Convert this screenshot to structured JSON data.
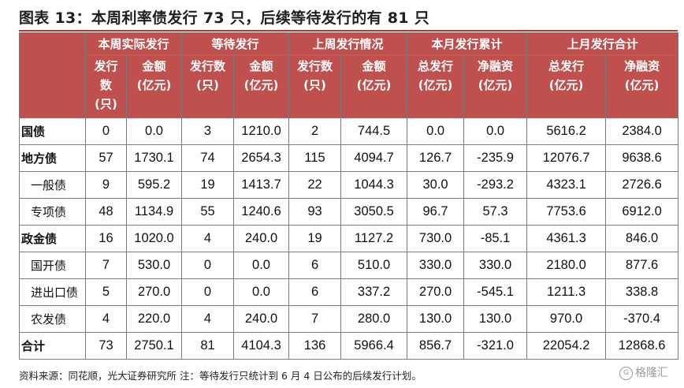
{
  "title": "图表 13：本周利率债发行 73 只，后续等待发行的有 81 只",
  "groups": [
    "本周实际发行",
    "等待发行",
    "上周发行情况",
    "本月发行累计",
    "上月发行合计"
  ],
  "subheaders": [
    [
      "发行\n数\n(只)",
      "金额\n(亿元)"
    ],
    [
      "发行数\n(只)",
      "金额\n(亿元)"
    ],
    [
      "发行数\n(只)",
      "金额\n(亿元)"
    ],
    [
      "总发行\n(亿元)",
      "净融资\n(亿元)"
    ],
    [
      "总发行\n(亿元)",
      "净融资\n(亿元)"
    ]
  ],
  "rows": [
    {
      "label": "国债",
      "sub": false,
      "values": [
        "0",
        "0.0",
        "3",
        "1210.0",
        "2",
        "744.5",
        "0.0",
        "0.0",
        "5616.2",
        "2384.0"
      ]
    },
    {
      "label": "地方债",
      "sub": false,
      "values": [
        "57",
        "1730.1",
        "74",
        "2654.3",
        "115",
        "4094.7",
        "126.7",
        "-235.9",
        "12076.7",
        "9638.6"
      ]
    },
    {
      "label": "一般债",
      "sub": true,
      "values": [
        "9",
        "595.2",
        "19",
        "1413.7",
        "22",
        "1044.3",
        "30.0",
        "-293.2",
        "4323.1",
        "2726.6"
      ]
    },
    {
      "label": "专项债",
      "sub": true,
      "values": [
        "48",
        "1134.9",
        "55",
        "1240.6",
        "93",
        "3050.5",
        "96.7",
        "57.3",
        "7753.6",
        "6912.0"
      ]
    },
    {
      "label": "政金债",
      "sub": false,
      "values": [
        "16",
        "1020.0",
        "4",
        "240.0",
        "19",
        "1127.2",
        "730.0",
        "-85.1",
        "4361.3",
        "846.0"
      ]
    },
    {
      "label": "国开债",
      "sub": true,
      "values": [
        "7",
        "530.0",
        "0",
        "0.0",
        "6",
        "510.0",
        "330.0",
        "330.0",
        "2180.0",
        "877.6"
      ]
    },
    {
      "label": "进出口债",
      "sub": true,
      "values": [
        "5",
        "270.0",
        "0",
        "0.0",
        "6",
        "337.2",
        "270.0",
        "-545.1",
        "1211.3",
        "338.8"
      ]
    },
    {
      "label": "农发债",
      "sub": true,
      "values": [
        "4",
        "220.0",
        "4",
        "240.0",
        "7",
        "280.0",
        "130.0",
        "130.0",
        "970.0",
        "-370.4"
      ]
    },
    {
      "label": "合计",
      "sub": false,
      "values": [
        "73",
        "2750.1",
        "81",
        "4104.3",
        "136",
        "5966.4",
        "856.7",
        "-321.0",
        "22054.2",
        "12868.6"
      ]
    }
  ],
  "footer": "资料来源：同花顺，光大证券研究所 注：等待发行只统计到 6 月 4 日公布的后续发行计划。",
  "watermark": "格隆汇",
  "colors": {
    "header_bg": "#c0504d",
    "header_text": "#ffffff",
    "title_rule": "#b23a2f"
  }
}
